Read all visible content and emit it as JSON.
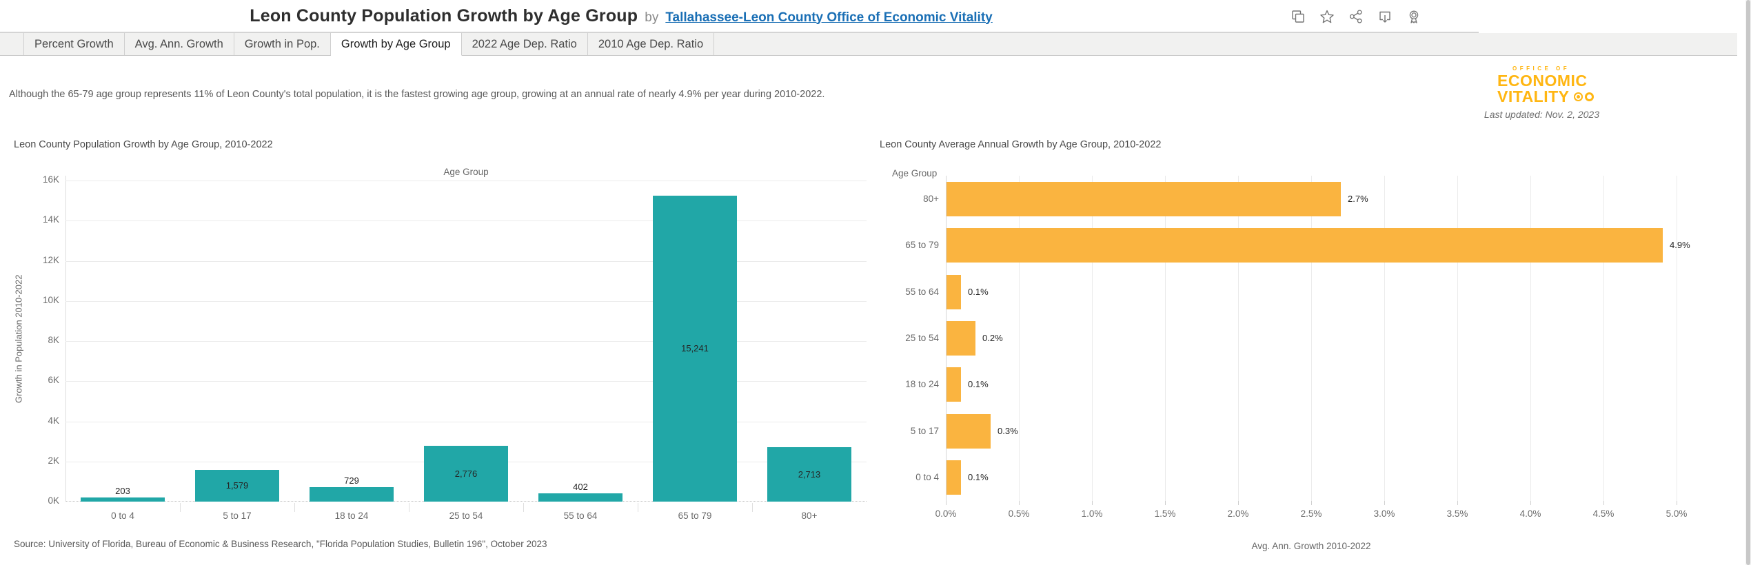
{
  "header": {
    "title": "Leon County Population Growth by Age Group",
    "by_label": "by",
    "author": "Tallahassee-Leon County Office of Economic Vitality",
    "icon_names": [
      "copy-icon",
      "star-icon",
      "share-icon",
      "download-icon",
      "award-icon"
    ]
  },
  "tabs": [
    {
      "label": "Percent Growth",
      "active": false
    },
    {
      "label": "Avg. Ann. Growth",
      "active": false
    },
    {
      "label": "Growth in Pop.",
      "active": false
    },
    {
      "label": "Growth by Age Group",
      "active": true
    },
    {
      "label": "2022 Age Dep. Ratio",
      "active": false
    },
    {
      "label": "2010 Age Dep. Ratio",
      "active": false
    }
  ],
  "dashboard": {
    "subtitle": "Although the 65-79 age group represents 11% of Leon County's total population, it is the fastest growing age group, growing at an annual rate of nearly 4.9% per year during 2010-2022.",
    "logo": {
      "line1": "OFFICE OF",
      "line2": "ECONOMIC",
      "line3": "VITALITY",
      "color": "#ffb612"
    },
    "last_updated": "Last updated: Nov. 2, 2023",
    "source": "Source: University of Florida, Bureau of Economic & Business Research, \"Florida Population Studies, Bulletin 196\", October 2023"
  },
  "chart_data": [
    {
      "type": "bar",
      "title": "Leon County Population Growth by Age Group, 2010-2022",
      "column_header": "Age Group",
      "categories": [
        "0 to 4",
        "5 to 17",
        "18 to 24",
        "25 to 54",
        "55 to 64",
        "65 to 79",
        "80+"
      ],
      "values": [
        203,
        1579,
        729,
        2776,
        402,
        15241,
        2713
      ],
      "labels": [
        "203",
        "1,579",
        "729",
        "2,776",
        "402",
        "15,241",
        "2,713"
      ],
      "xlabel": "Age Group",
      "ylabel": "Growth in Population 2010-2022",
      "yticks": [
        "0K",
        "2K",
        "4K",
        "6K",
        "8K",
        "10K",
        "12K",
        "14K",
        "16K"
      ],
      "ylim": [
        0,
        16000
      ],
      "bar_color": "#21a7a7",
      "grid": true,
      "legend": "none"
    },
    {
      "type": "bar",
      "orientation": "horizontal",
      "title": "Leon County Average Annual Growth by Age Group, 2010-2022",
      "row_header": "Age Group",
      "categories": [
        "80+",
        "65 to 79",
        "55 to 64",
        "25 to 54",
        "18 to 24",
        "5 to 17",
        "0 to 4"
      ],
      "values": [
        2.7,
        4.9,
        0.1,
        0.2,
        0.1,
        0.3,
        0.1
      ],
      "labels": [
        "2.7%",
        "4.9%",
        "0.1%",
        "0.2%",
        "0.1%",
        "0.3%",
        "0.1%"
      ],
      "xlabel": "Avg. Ann. Growth 2010-2022",
      "xticks": [
        "0.0%",
        "0.5%",
        "1.0%",
        "1.5%",
        "2.0%",
        "2.5%",
        "3.0%",
        "3.5%",
        "4.0%",
        "4.5%",
        "5.0%"
      ],
      "xlim": [
        0,
        5.2
      ],
      "bar_color": "#fab440",
      "grid": true,
      "legend": "none"
    }
  ]
}
